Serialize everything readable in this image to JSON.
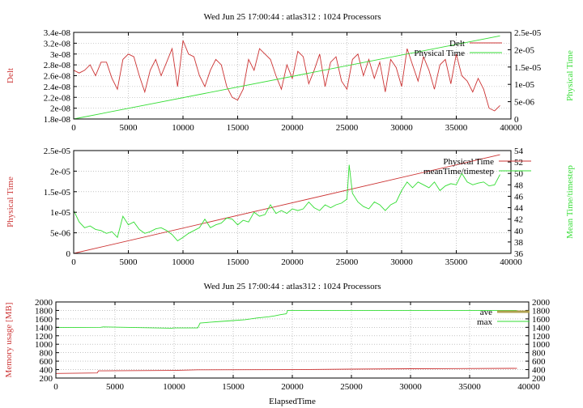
{
  "colors": {
    "red": "#cc3333",
    "green": "#33dd33",
    "olive": "#b0a050",
    "axis": "#000000",
    "grid": "#a0a0a0"
  },
  "chart_data": [
    {
      "type": "line",
      "title": "Wed Jun 25 17:00:44 : atlas312 : 1024 Processors",
      "xlabel": "",
      "ylabel": "Delt",
      "y2label": "Physical Time",
      "xlim": [
        0,
        40000
      ],
      "ylim": [
        1.8e-08,
        3.4e-08
      ],
      "y2lim": [
        0,
        2.5e-05
      ],
      "xticks": [
        "0",
        "5000",
        "10000",
        "15000",
        "20000",
        "25000",
        "30000",
        "35000",
        "40000"
      ],
      "yticks": [
        "1.8e-08",
        "2e-08",
        "2.2e-08",
        "2.4e-08",
        "2.6e-08",
        "2.8e-08",
        "3e-08",
        "3.2e-08",
        "3.4e-08"
      ],
      "y2ticks": [
        "0",
        "5e-06",
        "1e-05",
        "1.5e-05",
        "2e-05",
        "2.5e-05"
      ],
      "grid": true,
      "legend_position": "top-right",
      "series": [
        {
          "name": "Delt",
          "axis": "left",
          "color": "#cc3333",
          "x": [
            0,
            500,
            1000,
            1500,
            2000,
            2500,
            3000,
            3500,
            4000,
            4500,
            5000,
            5500,
            6000,
            6500,
            7000,
            7500,
            8000,
            8500,
            9000,
            9500,
            10000,
            10500,
            11000,
            11500,
            12000,
            12500,
            13000,
            13500,
            14000,
            14500,
            15000,
            15500,
            16000,
            16500,
            17000,
            17500,
            18000,
            18500,
            19000,
            19500,
            20000,
            20500,
            21000,
            21500,
            22000,
            22500,
            23000,
            23500,
            24000,
            24500,
            25000,
            25500,
            26000,
            26500,
            27000,
            27500,
            28000,
            28500,
            29000,
            29500,
            30000,
            30500,
            31000,
            31500,
            32000,
            32500,
            33000,
            33500,
            34000,
            34500,
            35000,
            35500,
            36000,
            36500,
            37000,
            37500,
            38000,
            38500,
            39000
          ],
          "y": [
            2.7e-08,
            2.65e-08,
            2.7e-08,
            2.8e-08,
            2.6e-08,
            2.85e-08,
            2.85e-08,
            2.55e-08,
            2.35e-08,
            2.9e-08,
            3e-08,
            2.95e-08,
            2.6e-08,
            2.3e-08,
            2.7e-08,
            2.9e-08,
            2.6e-08,
            2.85e-08,
            3.1e-08,
            2.4e-08,
            3.25e-08,
            3e-08,
            2.95e-08,
            2.6e-08,
            2.4e-08,
            2.7e-08,
            2.9e-08,
            2.8e-08,
            2.4e-08,
            2.2e-08,
            2.15e-08,
            2.35e-08,
            2.9e-08,
            2.7e-08,
            3.1e-08,
            3e-08,
            2.9e-08,
            2.6e-08,
            2.35e-08,
            2.8e-08,
            2.55e-08,
            3.05e-08,
            2.95e-08,
            2.45e-08,
            2.7e-08,
            3e-08,
            2.4e-08,
            2.85e-08,
            2.95e-08,
            2.5e-08,
            2.35e-08,
            2.9e-08,
            3e-08,
            2.6e-08,
            2.9e-08,
            2.55e-08,
            2.85e-08,
            2.3e-08,
            2.9e-08,
            2.75e-08,
            2.4e-08,
            3.1e-08,
            2.8e-08,
            2.5e-08,
            2.95e-08,
            2.7e-08,
            2.35e-08,
            2.8e-08,
            2.9e-08,
            2.45e-08,
            3e-08,
            2.6e-08,
            2.5e-08,
            2.3e-08,
            2.55e-08,
            2.35e-08,
            2e-08,
            1.95e-08,
            2.05e-08
          ]
        },
        {
          "name": "Physical Time",
          "axis": "right",
          "color": "#33dd33",
          "x": [
            0,
            39000
          ],
          "y": [
            0,
            2.4e-05
          ]
        }
      ]
    },
    {
      "type": "line",
      "title": "",
      "xlabel": "",
      "ylabel": "Physical Time",
      "y2label": "Mean Time/timestep",
      "xlim": [
        0,
        40000
      ],
      "ylim": [
        0,
        2.5e-05
      ],
      "y2lim": [
        36,
        54
      ],
      "xticks": [
        "0",
        "5000",
        "10000",
        "15000",
        "20000",
        "25000",
        "30000",
        "35000",
        "40000"
      ],
      "yticks": [
        "0",
        "5e-06",
        "1e-05",
        "1.5e-05",
        "2e-05",
        "2.5e-05"
      ],
      "y2ticks": [
        "36",
        "38",
        "40",
        "42",
        "44",
        "46",
        "48",
        "50",
        "52",
        "54"
      ],
      "grid": true,
      "legend_position": "top-right",
      "series": [
        {
          "name": "Physical Time",
          "axis": "left",
          "color": "#cc3333",
          "x": [
            0,
            39000
          ],
          "y": [
            0,
            2.4e-05
          ]
        },
        {
          "name": "meanTime/timestep",
          "axis": "right",
          "color": "#33dd33",
          "x": [
            0,
            500,
            1000,
            1500,
            2000,
            2500,
            3000,
            3500,
            4000,
            4500,
            5000,
            5500,
            6000,
            6500,
            7000,
            7500,
            8000,
            8500,
            9000,
            9500,
            10000,
            10500,
            11000,
            11500,
            12000,
            12500,
            13000,
            13500,
            14000,
            14500,
            15000,
            15500,
            16000,
            16500,
            17000,
            17500,
            18000,
            18500,
            19000,
            19500,
            20000,
            20500,
            21000,
            21500,
            22000,
            22500,
            23000,
            23500,
            24000,
            24500,
            25000,
            25200,
            25500,
            26000,
            26500,
            27000,
            27500,
            28000,
            28500,
            29000,
            29500,
            30000,
            30500,
            31000,
            31500,
            32000,
            32500,
            33000,
            33500,
            34000,
            34500,
            35000,
            35500,
            36000,
            36500,
            37000,
            37500,
            38000,
            38500,
            39000
          ],
          "y": [
            43.5,
            41.5,
            40.5,
            40.8,
            40.2,
            40.0,
            39.5,
            39.8,
            38.8,
            42.5,
            41.0,
            41.5,
            40.2,
            39.5,
            39.8,
            40.3,
            40.5,
            40.0,
            39.3,
            38.2,
            38.8,
            39.5,
            40.0,
            40.5,
            42.0,
            40.5,
            41.0,
            41.3,
            42.2,
            42.0,
            41.0,
            41.8,
            41.5,
            43.2,
            42.5,
            42.8,
            44.5,
            43.0,
            43.5,
            43.0,
            43.8,
            43.5,
            43.8,
            45.0,
            44.0,
            43.5,
            44.5,
            44.0,
            44.5,
            44.8,
            45.5,
            51.5,
            46.5,
            45.0,
            44.2,
            43.8,
            45.0,
            44.5,
            43.5,
            44.5,
            45.0,
            47.0,
            48.5,
            47.5,
            48.5,
            48.0,
            47.5,
            48.5,
            47.0,
            47.8,
            48.2,
            48.0,
            50.0,
            48.5,
            48.0,
            48.3,
            48.5,
            47.8,
            48.0,
            49.8
          ]
        }
      ]
    },
    {
      "type": "line",
      "title": "Wed Jun 25 17:00:44 : atlas312 : 1024 Processors",
      "xlabel": "ElapsedTime",
      "ylabel": "Memory usage [MB]",
      "xlim": [
        0,
        40000
      ],
      "ylim": [
        200,
        2000
      ],
      "y2lim": [
        200,
        2000
      ],
      "xticks": [
        "0",
        "5000",
        "10000",
        "15000",
        "20000",
        "25000",
        "30000",
        "35000",
        "40000"
      ],
      "yticks": [
        "200",
        "400",
        "600",
        "800",
        "1000",
        "1200",
        "1400",
        "1600",
        "1800",
        "2000"
      ],
      "y2ticks": [
        "200",
        "400",
        "600",
        "800",
        "1000",
        "1200",
        "1400",
        "1600",
        "1800",
        "2000"
      ],
      "grid": true,
      "legend_position": "top-right",
      "series": [
        {
          "name": "ave",
          "axis": "left",
          "color": "#cc3333",
          "x": [
            0,
            3500,
            3600,
            10000,
            12000,
            20000,
            25000,
            30000,
            34000,
            39000
          ],
          "y": [
            310,
            320,
            370,
            380,
            395,
            400,
            410,
            420,
            425,
            430
          ]
        },
        {
          "name": "max",
          "axis": "left",
          "color": "#33dd33",
          "x": [
            0,
            3800,
            4000,
            9800,
            10000,
            12000,
            12200,
            13000,
            14000,
            15000,
            16000,
            17000,
            18000,
            18500,
            19000,
            19500,
            19600,
            20000,
            39000
          ],
          "y": [
            1395,
            1400,
            1410,
            1380,
            1385,
            1385,
            1500,
            1520,
            1540,
            1560,
            1580,
            1620,
            1650,
            1670,
            1700,
            1720,
            1800,
            1800,
            1800
          ]
        }
      ]
    }
  ]
}
